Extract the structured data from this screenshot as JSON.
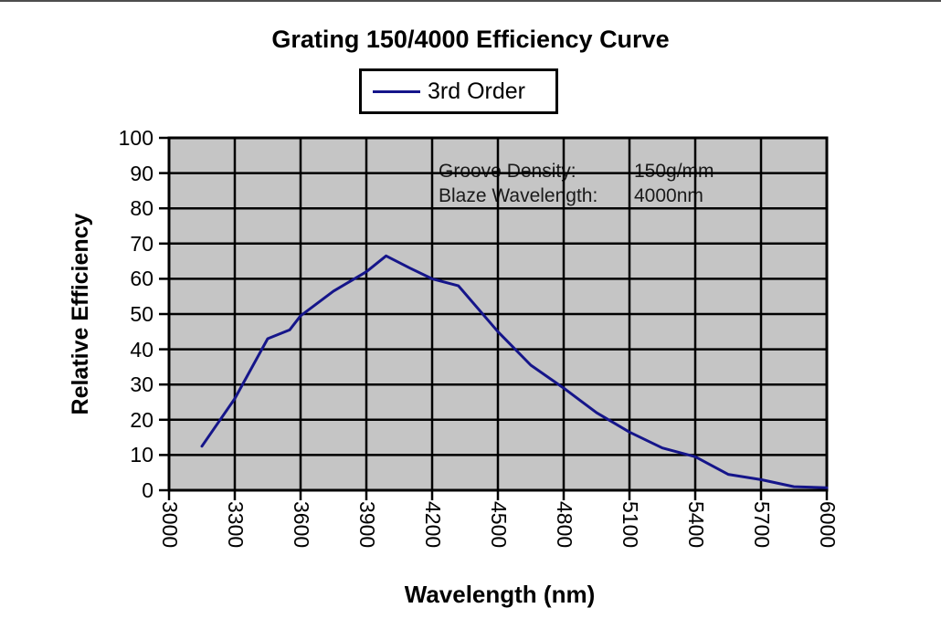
{
  "chart_data": {
    "type": "line",
    "title": "Grating 150/4000 Efficiency Curve",
    "xlabel": "Wavelength (nm)",
    "ylabel": "Relative Efficiency",
    "xlim": [
      3000,
      6000
    ],
    "ylim": [
      0,
      100
    ],
    "x_ticks": [
      3000,
      3300,
      3600,
      3900,
      4200,
      4500,
      4800,
      5100,
      5400,
      5700,
      6000
    ],
    "y_ticks": [
      0,
      10,
      20,
      30,
      40,
      50,
      60,
      70,
      80,
      90,
      100
    ],
    "grid": true,
    "plot_background": "#c5c5c5",
    "gridline_color": "#000000",
    "axis_color": "#000000",
    "legend": {
      "position": "top-center",
      "entries": [
        {
          "label": "3rd Order",
          "color": "#15158a"
        }
      ]
    },
    "series": [
      {
        "name": "3rd Order",
        "color": "#15158a",
        "x": [
          3150,
          3300,
          3450,
          3550,
          3600,
          3750,
          3900,
          3990,
          4100,
          4200,
          4320,
          4500,
          4650,
          4800,
          4950,
          5100,
          5250,
          5400,
          5550,
          5700,
          5850,
          6000
        ],
        "y": [
          12.5,
          26,
          43,
          45.5,
          49.5,
          56.5,
          62,
          66.5,
          63,
          60,
          58,
          45,
          35.5,
          29,
          22,
          16.5,
          12,
          9.5,
          4.5,
          3,
          1,
          0.7
        ]
      }
    ],
    "annotations": [
      {
        "label": "Groove Density:",
        "value": "150g/mm"
      },
      {
        "label": "Blaze Wavelength:",
        "value": "4000nm"
      }
    ]
  }
}
